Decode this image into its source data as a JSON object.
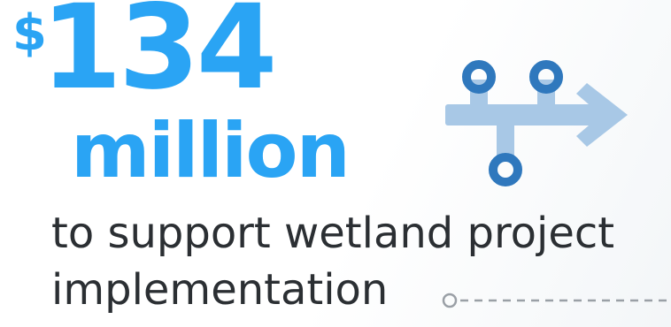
{
  "headline": {
    "currency_symbol": "$",
    "amount": "134",
    "unit": "million"
  },
  "description": {
    "line1": "to support wetland project",
    "line2": "implementation"
  },
  "icon": {
    "name": "merge-arrow-icon",
    "primary_color": "#2f78bd",
    "secondary_color": "#a8c8e6"
  },
  "colors": {
    "accent": "#2aa4f4",
    "text": "#2b2f33",
    "connector": "#9aa0a6"
  }
}
